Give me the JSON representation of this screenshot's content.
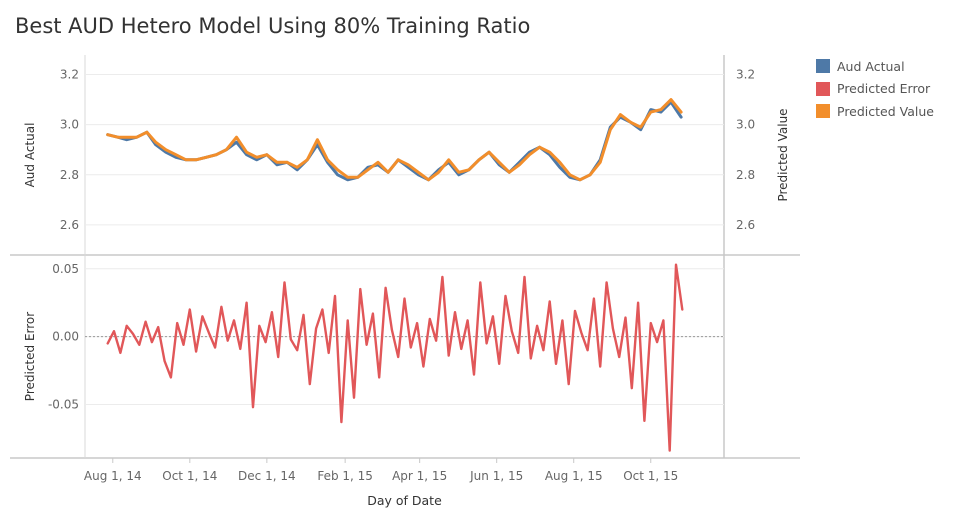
{
  "title": "Best AUD Hetero Model Using 80% Training Ratio",
  "legend": [
    {
      "label": "Aud Actual",
      "color": "#4e79a7"
    },
    {
      "label": "Predicted Error",
      "color": "#e15759"
    },
    {
      "label": "Predicted Value",
      "color": "#f28e2b"
    }
  ],
  "chart_data": {
    "type": "line",
    "xlabel": "Day of Date",
    "x_ticks": [
      "Aug 1, 14",
      "Oct 1, 14",
      "Dec 1, 14",
      "Feb 1, 15",
      "Apr 1, 15",
      "Jun 1, 15",
      "Aug 1, 15",
      "Oct 1, 15"
    ],
    "x_tick_dates": [
      "2014-08-01",
      "2014-10-01",
      "2014-12-01",
      "2015-02-01",
      "2015-04-01",
      "2015-06-01",
      "2015-08-01",
      "2015-10-01"
    ],
    "x_range": [
      "2014-07-10",
      "2015-11-28"
    ],
    "panels": [
      {
        "ylabel_left": "Aud Actual",
        "ylabel_right": "Predicted Value",
        "ylim": [
          2.5,
          3.25
        ],
        "yticks": [
          "3.2",
          "3.0",
          "2.8",
          "2.6"
        ],
        "ytick_values": [
          3.2,
          3.0,
          2.8,
          2.6
        ],
        "series": [
          {
            "name": "Aud Actual",
            "color": "#4e79a7",
            "x": [
              "2014-07-28",
              "2014-08-05",
              "2014-08-12",
              "2014-08-20",
              "2014-08-28",
              "2014-09-04",
              "2014-09-12",
              "2014-09-20",
              "2014-09-28",
              "2014-10-06",
              "2014-10-14",
              "2014-10-22",
              "2014-10-30",
              "2014-11-07",
              "2014-11-15",
              "2014-11-23",
              "2014-12-01",
              "2014-12-09",
              "2014-12-17",
              "2014-12-25",
              "2015-01-02",
              "2015-01-10",
              "2015-01-18",
              "2015-01-26",
              "2015-02-03",
              "2015-02-11",
              "2015-02-19",
              "2015-02-27",
              "2015-03-07",
              "2015-03-15",
              "2015-03-23",
              "2015-03-31",
              "2015-04-08",
              "2015-04-16",
              "2015-04-24",
              "2015-05-02",
              "2015-05-10",
              "2015-05-18",
              "2015-05-26",
              "2015-06-03",
              "2015-06-11",
              "2015-06-19",
              "2015-06-27",
              "2015-07-05",
              "2015-07-13",
              "2015-07-21",
              "2015-07-29",
              "2015-08-06",
              "2015-08-14",
              "2015-08-22",
              "2015-08-30",
              "2015-09-07",
              "2015-09-15",
              "2015-09-23",
              "2015-10-01",
              "2015-10-09",
              "2015-10-17",
              "2015-10-25"
            ],
            "values": [
              2.96,
              2.95,
              2.94,
              2.95,
              2.97,
              2.92,
              2.89,
              2.87,
              2.86,
              2.86,
              2.87,
              2.88,
              2.9,
              2.93,
              2.88,
              2.86,
              2.88,
              2.84,
              2.85,
              2.82,
              2.86,
              2.92,
              2.85,
              2.8,
              2.78,
              2.79,
              2.83,
              2.84,
              2.81,
              2.86,
              2.83,
              2.8,
              2.78,
              2.82,
              2.85,
              2.8,
              2.82,
              2.86,
              2.89,
              2.84,
              2.81,
              2.85,
              2.89,
              2.91,
              2.88,
              2.83,
              2.79,
              2.78,
              2.8,
              2.86,
              2.99,
              3.03,
              3.01,
              2.98,
              3.06,
              3.05,
              3.09,
              3.03
            ]
          },
          {
            "name": "Predicted Value",
            "color": "#f28e2b",
            "x": [
              "2014-07-28",
              "2014-08-05",
              "2014-08-12",
              "2014-08-20",
              "2014-08-28",
              "2014-09-04",
              "2014-09-12",
              "2014-09-20",
              "2014-09-28",
              "2014-10-06",
              "2014-10-14",
              "2014-10-22",
              "2014-10-30",
              "2014-11-07",
              "2014-11-15",
              "2014-11-23",
              "2014-12-01",
              "2014-12-09",
              "2014-12-17",
              "2014-12-25",
              "2015-01-02",
              "2015-01-10",
              "2015-01-18",
              "2015-01-26",
              "2015-02-03",
              "2015-02-11",
              "2015-02-19",
              "2015-02-27",
              "2015-03-07",
              "2015-03-15",
              "2015-03-23",
              "2015-03-31",
              "2015-04-08",
              "2015-04-16",
              "2015-04-24",
              "2015-05-02",
              "2015-05-10",
              "2015-05-18",
              "2015-05-26",
              "2015-06-03",
              "2015-06-11",
              "2015-06-19",
              "2015-06-27",
              "2015-07-05",
              "2015-07-13",
              "2015-07-21",
              "2015-07-29",
              "2015-08-06",
              "2015-08-14",
              "2015-08-22",
              "2015-08-30",
              "2015-09-07",
              "2015-09-15",
              "2015-09-23",
              "2015-10-01",
              "2015-10-09",
              "2015-10-17",
              "2015-10-25"
            ],
            "values": [
              2.96,
              2.95,
              2.95,
              2.95,
              2.97,
              2.93,
              2.9,
              2.88,
              2.86,
              2.86,
              2.87,
              2.88,
              2.9,
              2.95,
              2.89,
              2.87,
              2.88,
              2.85,
              2.85,
              2.83,
              2.86,
              2.94,
              2.86,
              2.82,
              2.79,
              2.79,
              2.82,
              2.85,
              2.81,
              2.86,
              2.84,
              2.81,
              2.78,
              2.81,
              2.86,
              2.81,
              2.82,
              2.86,
              2.89,
              2.85,
              2.81,
              2.84,
              2.88,
              2.91,
              2.89,
              2.85,
              2.8,
              2.78,
              2.8,
              2.85,
              2.98,
              3.04,
              3.01,
              2.99,
              3.05,
              3.06,
              3.1,
              3.05
            ]
          }
        ]
      },
      {
        "ylabel_left": "Predicted Error",
        "ylim": [
          -0.085,
          0.055
        ],
        "yticks": [
          "0.05",
          "0.00",
          "-0.05"
        ],
        "ytick_values": [
          0.05,
          0.0,
          -0.05
        ],
        "reference_line": 0,
        "series": [
          {
            "name": "Predicted Error",
            "color": "#e15759",
            "x": [
              "2014-07-28",
              "2014-08-02",
              "2014-08-07",
              "2014-08-12",
              "2014-08-17",
              "2014-08-22",
              "2014-08-27",
              "2014-09-01",
              "2014-09-06",
              "2014-09-11",
              "2014-09-16",
              "2014-09-21",
              "2014-09-26",
              "2014-10-01",
              "2014-10-06",
              "2014-10-11",
              "2014-10-16",
              "2014-10-21",
              "2014-10-26",
              "2014-10-31",
              "2014-11-05",
              "2014-11-10",
              "2014-11-15",
              "2014-11-20",
              "2014-11-25",
              "2014-11-30",
              "2014-12-05",
              "2014-12-10",
              "2014-12-15",
              "2014-12-20",
              "2014-12-25",
              "2014-12-30",
              "2015-01-04",
              "2015-01-09",
              "2015-01-14",
              "2015-01-19",
              "2015-01-24",
              "2015-01-29",
              "2015-02-03",
              "2015-02-08",
              "2015-02-13",
              "2015-02-18",
              "2015-02-23",
              "2015-02-28",
              "2015-03-05",
              "2015-03-10",
              "2015-03-15",
              "2015-03-20",
              "2015-03-25",
              "2015-03-30",
              "2015-04-04",
              "2015-04-09",
              "2015-04-14",
              "2015-04-19",
              "2015-04-24",
              "2015-04-29",
              "2015-05-04",
              "2015-05-09",
              "2015-05-14",
              "2015-05-19",
              "2015-05-24",
              "2015-05-29",
              "2015-06-03",
              "2015-06-08",
              "2015-06-13",
              "2015-06-18",
              "2015-06-23",
              "2015-06-28",
              "2015-07-03",
              "2015-07-08",
              "2015-07-13",
              "2015-07-18",
              "2015-07-23",
              "2015-07-28",
              "2015-08-02",
              "2015-08-07",
              "2015-08-12",
              "2015-08-17",
              "2015-08-22",
              "2015-08-27",
              "2015-09-01",
              "2015-09-06",
              "2015-09-11",
              "2015-09-16",
              "2015-09-21",
              "2015-09-26",
              "2015-10-01",
              "2015-10-06",
              "2015-10-11",
              "2015-10-16",
              "2015-10-21",
              "2015-10-26"
            ],
            "values": [
              -0.005,
              0.004,
              -0.012,
              0.008,
              0.002,
              -0.006,
              0.011,
              -0.004,
              0.007,
              -0.018,
              -0.03,
              0.01,
              -0.006,
              0.02,
              -0.011,
              0.015,
              0.003,
              -0.008,
              0.022,
              -0.003,
              0.012,
              -0.009,
              0.025,
              -0.052,
              0.008,
              -0.004,
              0.018,
              -0.015,
              0.04,
              -0.002,
              -0.01,
              0.016,
              -0.035,
              0.006,
              0.02,
              -0.012,
              0.03,
              -0.063,
              0.012,
              -0.045,
              0.035,
              -0.006,
              0.017,
              -0.03,
              0.036,
              0.005,
              -0.015,
              0.028,
              -0.008,
              0.01,
              -0.022,
              0.013,
              -0.003,
              0.044,
              -0.014,
              0.018,
              -0.009,
              0.012,
              -0.028,
              0.04,
              -0.005,
              0.015,
              -0.02,
              0.03,
              0.004,
              -0.012,
              0.044,
              -0.016,
              0.008,
              -0.01,
              0.026,
              -0.02,
              0.012,
              -0.035,
              0.019,
              0.003,
              -0.01,
              0.028,
              -0.022,
              0.04,
              0.006,
              -0.015,
              0.014,
              -0.038,
              0.025,
              -0.062,
              0.01,
              -0.004,
              0.012,
              -0.084,
              0.053,
              0.02
            ]
          }
        ]
      }
    ]
  }
}
